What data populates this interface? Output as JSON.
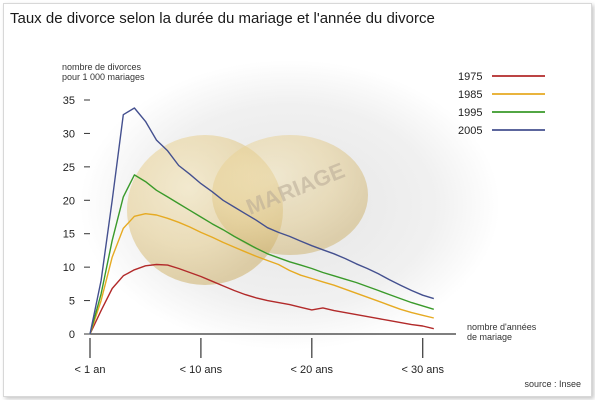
{
  "title": "Taux de divorce selon la durée du mariage et l'année du divorce",
  "source": "source : Insee",
  "watermark": "MARIAGE",
  "chart_data": {
    "type": "line",
    "ylabel_lines": [
      "nombre de divorces",
      "pour 1 000 mariages"
    ],
    "xlabel_lines": [
      "nombre d'années",
      "de mariage"
    ],
    "xlim": [
      0,
      33
    ],
    "ylim": [
      0,
      35
    ],
    "y_ticks": [
      0,
      5,
      10,
      15,
      20,
      25,
      30,
      35
    ],
    "x_ticks": [
      {
        "value": 0,
        "label": "< 1 an"
      },
      {
        "value": 10,
        "label": "< 10 ans"
      },
      {
        "value": 20,
        "label": "< 20 ans"
      },
      {
        "value": 30,
        "label": "< 30 ans"
      }
    ],
    "legend_position": "top-right",
    "grid": false,
    "x": [
      0,
      1,
      2,
      3,
      4,
      5,
      6,
      7,
      8,
      9,
      10,
      11,
      12,
      13,
      14,
      15,
      16,
      17,
      18,
      19,
      20,
      21,
      22,
      23,
      24,
      25,
      26,
      27,
      28,
      29,
      30,
      31
    ],
    "series": [
      {
        "name": "1975",
        "color": "#b22a2a",
        "values": [
          0,
          3.5,
          6.8,
          8.7,
          9.6,
          10.2,
          10.4,
          10.3,
          9.8,
          9.2,
          8.6,
          7.9,
          7.2,
          6.5,
          5.9,
          5.4,
          5.0,
          4.7,
          4.4,
          4.0,
          3.6,
          3.9,
          3.5,
          3.2,
          2.9,
          2.6,
          2.3,
          2.0,
          1.7,
          1.4,
          1.2,
          0.8
        ]
      },
      {
        "name": "1985",
        "color": "#e6aa22",
        "values": [
          0,
          5.0,
          11.5,
          15.8,
          17.6,
          18.0,
          17.8,
          17.3,
          16.7,
          16.0,
          15.2,
          14.5,
          13.7,
          13.0,
          12.3,
          11.6,
          11.0,
          10.4,
          9.5,
          8.8,
          8.3,
          7.8,
          7.3,
          6.7,
          6.1,
          5.5,
          4.9,
          4.3,
          3.7,
          3.2,
          2.8,
          2.4
        ]
      },
      {
        "name": "1995",
        "color": "#3a9a2a",
        "values": [
          0,
          6.0,
          14.0,
          20.5,
          23.8,
          22.8,
          21.5,
          20.5,
          19.5,
          18.5,
          17.5,
          16.5,
          15.6,
          14.6,
          13.7,
          12.8,
          12.0,
          11.4,
          10.8,
          10.3,
          9.8,
          9.2,
          8.7,
          8.2,
          7.7,
          7.1,
          6.5,
          5.9,
          5.3,
          4.7,
          4.2,
          3.7
        ]
      },
      {
        "name": "2005",
        "color": "#44508f",
        "values": [
          0,
          8.0,
          20.0,
          32.8,
          33.8,
          31.8,
          29.0,
          27.4,
          25.2,
          23.9,
          22.5,
          21.3,
          20.0,
          19.0,
          18.0,
          17.0,
          15.9,
          15.2,
          14.6,
          13.9,
          13.2,
          12.6,
          12.0,
          11.3,
          10.5,
          9.8,
          9.0,
          8.1,
          7.3,
          6.5,
          5.8,
          5.3
        ]
      }
    ]
  }
}
